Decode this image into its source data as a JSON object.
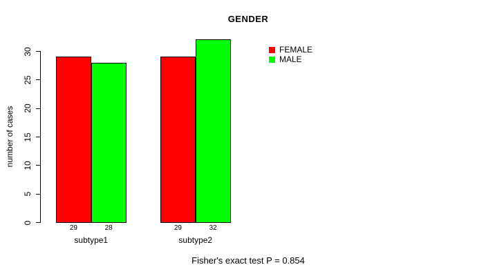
{
  "chart_data": {
    "type": "bar",
    "title": "GENDER",
    "xlabel": "",
    "ylabel": "number of cases",
    "categories": [
      "subtype1",
      "subtype2"
    ],
    "series": [
      {
        "name": "FEMALE",
        "color": "#ff0000",
        "values": [
          29,
          29
        ]
      },
      {
        "name": "MALE",
        "color": "#00ff00",
        "values": [
          28,
          32
        ]
      }
    ],
    "yticks": [
      0,
      5,
      10,
      15,
      20,
      25,
      30
    ],
    "ylim": [
      0,
      32
    ],
    "grid": false,
    "legend_position": "top-right",
    "bar_value_labels_shown": true,
    "annotation": "Fisher's exact test P = 0.854",
    "p_value": "0.854"
  },
  "colors": {
    "background": "#ffffff",
    "axis": "#000000",
    "text": "#000000",
    "female": "#ff0000",
    "male": "#00ff00"
  }
}
